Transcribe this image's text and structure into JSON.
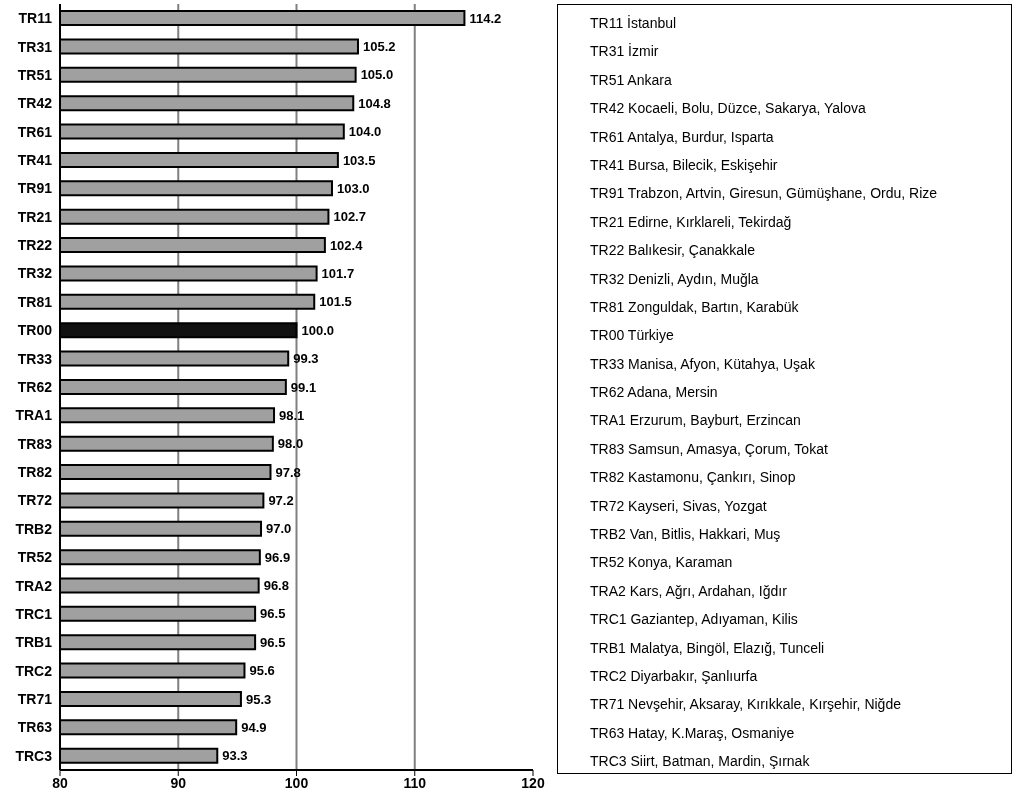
{
  "chart_data": {
    "type": "bar",
    "orientation": "horizontal",
    "categories": [
      "TR11",
      "TR31",
      "TR51",
      "TR42",
      "TR61",
      "TR41",
      "TR91",
      "TR21",
      "TR22",
      "TR32",
      "TR81",
      "TR00",
      "TR33",
      "TR62",
      "TRA1",
      "TR83",
      "TR82",
      "TR72",
      "TRB2",
      "TR52",
      "TRA2",
      "TRC1",
      "TRB1",
      "TRC2",
      "TR71",
      "TR63",
      "TRC3"
    ],
    "values": [
      114.2,
      105.2,
      105.0,
      104.8,
      104.0,
      103.5,
      103.0,
      102.7,
      102.4,
      101.7,
      101.5,
      100.0,
      99.3,
      99.1,
      98.1,
      98.0,
      97.8,
      97.2,
      97.0,
      96.9,
      96.8,
      96.5,
      96.5,
      95.6,
      95.3,
      94.9,
      93.3
    ],
    "value_labels": [
      "114.2",
      "105.2",
      "105.0",
      "104.8",
      "104.0",
      "103.5",
      "103.0",
      "102.7",
      "102.4",
      "101.7",
      "101.5",
      "100.0",
      "99.3",
      "99.1",
      "98.1",
      "98.0",
      "97.8",
      "97.2",
      "97.0",
      "96.9",
      "96.8",
      "96.5",
      "96.5",
      "95.6",
      "95.3",
      "94.9",
      "93.3"
    ],
    "colors": [
      "#a0a0a0",
      "#a0a0a0",
      "#a0a0a0",
      "#a0a0a0",
      "#a0a0a0",
      "#a0a0a0",
      "#a0a0a0",
      "#a0a0a0",
      "#a0a0a0",
      "#a0a0a0",
      "#a0a0a0",
      "#111111",
      "#a0a0a0",
      "#a0a0a0",
      "#a0a0a0",
      "#a0a0a0",
      "#a0a0a0",
      "#a0a0a0",
      "#a0a0a0",
      "#a0a0a0",
      "#a0a0a0",
      "#a0a0a0",
      "#a0a0a0",
      "#a0a0a0",
      "#a0a0a0",
      "#a0a0a0",
      "#a0a0a0"
    ],
    "xlim": [
      80,
      120
    ],
    "xticks": [
      80,
      90,
      100,
      110,
      120
    ],
    "grid": "x",
    "annotations": [
      "TR11 İstanbul",
      "TR31 İzmir",
      "TR51 Ankara",
      "TR42 Kocaeli, Bolu, Düzce, Sakarya, Yalova",
      "TR61 Antalya, Burdur, Isparta",
      "TR41 Bursa, Bilecik, Eskişehir",
      "TR91 Trabzon, Artvin, Giresun, Gümüşhane, Ordu, Rize",
      "TR21 Edirne, Kırklareli, Tekirdağ",
      "TR22 Balıkesir, Çanakkale",
      "TR32 Denizli, Aydın, Muğla",
      "TR81 Zonguldak, Bartın, Karabük",
      "TR00 Türkiye",
      "TR33 Manisa, Afyon, Kütahya, Uşak",
      "TR62 Adana, Mersin",
      "TRA1 Erzurum, Bayburt, Erzincan",
      "TR83 Samsun, Amasya, Çorum, Tokat",
      "TR82 Kastamonu, Çankırı, Sinop",
      "TR72 Kayseri, Sivas, Yozgat",
      "TRB2 Van, Bitlis, Hakkari, Muş",
      "TR52 Konya, Karaman",
      "TRA2 Kars, Ağrı, Ardahan, Iğdır",
      "TRC1 Gaziantep, Adıyaman, Kilis",
      "TRB1 Malatya, Bingöl, Elazığ, Tunceli",
      "TRC2 Diyarbakır, Şanlıurfa",
      "TR71 Nevşehir, Aksaray, Kırıkkale, Kırşehir, Niğde",
      "TR63 Hatay, K.Maraş, Osmaniye",
      "TRC3 Siirt, Batman, Mardin, Şırnak"
    ]
  }
}
